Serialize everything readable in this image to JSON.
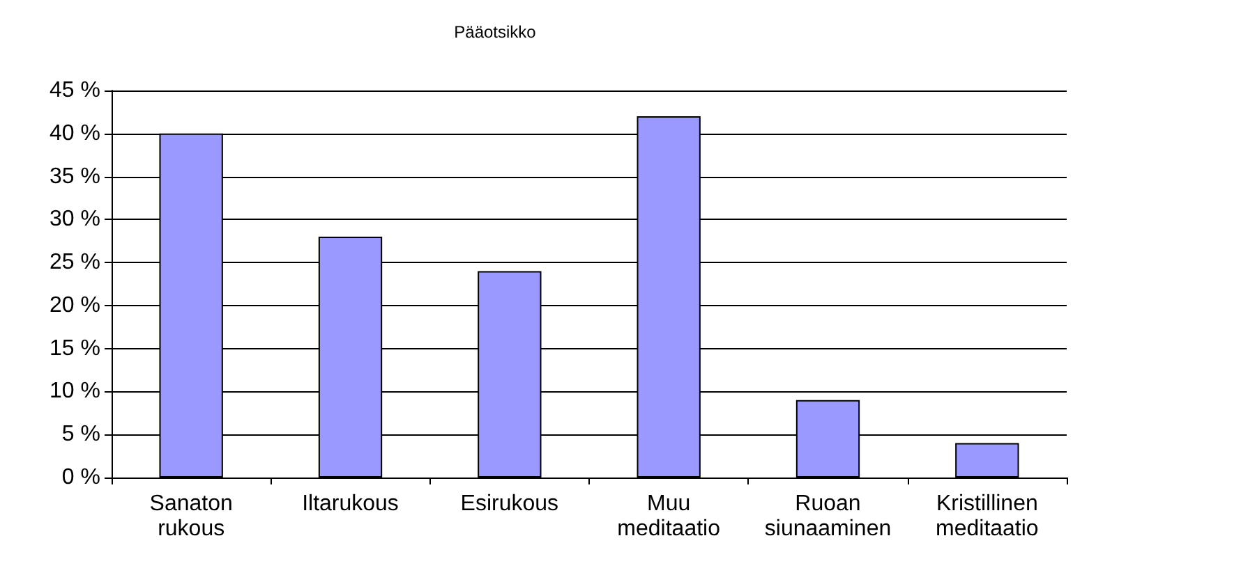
{
  "chart_data": {
    "type": "bar",
    "title": "Pääotsikko",
    "categories": [
      "Sanaton rukous",
      "Iltarukous",
      "Esirukous",
      "Muu meditaatio",
      "Ruoan siunaaminen",
      "Kristillinen meditaatio"
    ],
    "values": [
      40,
      28,
      24,
      42,
      9,
      4
    ],
    "color": "#9999ff",
    "ylim": [
      0,
      45
    ],
    "yticks": [
      {
        "value": 0,
        "label": "0 %"
      },
      {
        "value": 5,
        "label": "5 %"
      },
      {
        "value": 10,
        "label": "10 %"
      },
      {
        "value": 15,
        "label": "15 %"
      },
      {
        "value": 20,
        "label": "20 %"
      },
      {
        "value": 25,
        "label": "25 %"
      },
      {
        "value": 30,
        "label": "30 %"
      },
      {
        "value": 35,
        "label": "35 %"
      },
      {
        "value": 40,
        "label": "40 %"
      },
      {
        "value": 45,
        "label": "45 %"
      }
    ],
    "grid": "y",
    "legend": false
  }
}
